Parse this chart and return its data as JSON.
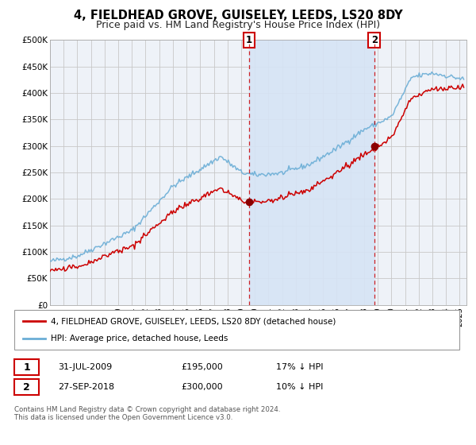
{
  "title": "4, FIELDHEAD GROVE, GUISELEY, LEEDS, LS20 8DY",
  "subtitle": "Price paid vs. HM Land Registry's House Price Index (HPI)",
  "ylim": [
    0,
    500000
  ],
  "yticks": [
    0,
    50000,
    100000,
    150000,
    200000,
    250000,
    300000,
    350000,
    400000,
    450000,
    500000
  ],
  "ytick_labels": [
    "£0",
    "£50K",
    "£100K",
    "£150K",
    "£200K",
    "£250K",
    "£300K",
    "£350K",
    "£400K",
    "£450K",
    "£500K"
  ],
  "xlim_start": 1995.0,
  "xlim_end": 2025.5,
  "hpi_color": "#6baed6",
  "sale_color": "#cc0000",
  "dot_color": "#8B0000",
  "background_color": "#ffffff",
  "plot_bg_color": "#eef2f8",
  "shade_color": "#d6e4f5",
  "grid_color": "#c8c8c8",
  "transaction1_x": 2009.58,
  "transaction1_y": 195000,
  "transaction2_x": 2018.75,
  "transaction2_y": 300000,
  "legend_label1": "4, FIELDHEAD GROVE, GUISELEY, LEEDS, LS20 8DY (detached house)",
  "legend_label2": "HPI: Average price, detached house, Leeds",
  "note1_label": "1",
  "note1_date": "31-JUL-2009",
  "note1_price": "£195,000",
  "note1_hpi": "17% ↓ HPI",
  "note2_label": "2",
  "note2_date": "27-SEP-2018",
  "note2_price": "£300,000",
  "note2_hpi": "10% ↓ HPI",
  "footer": "Contains HM Land Registry data © Crown copyright and database right 2024.\nThis data is licensed under the Open Government Licence v3.0.",
  "title_fontsize": 10.5,
  "subtitle_fontsize": 9
}
